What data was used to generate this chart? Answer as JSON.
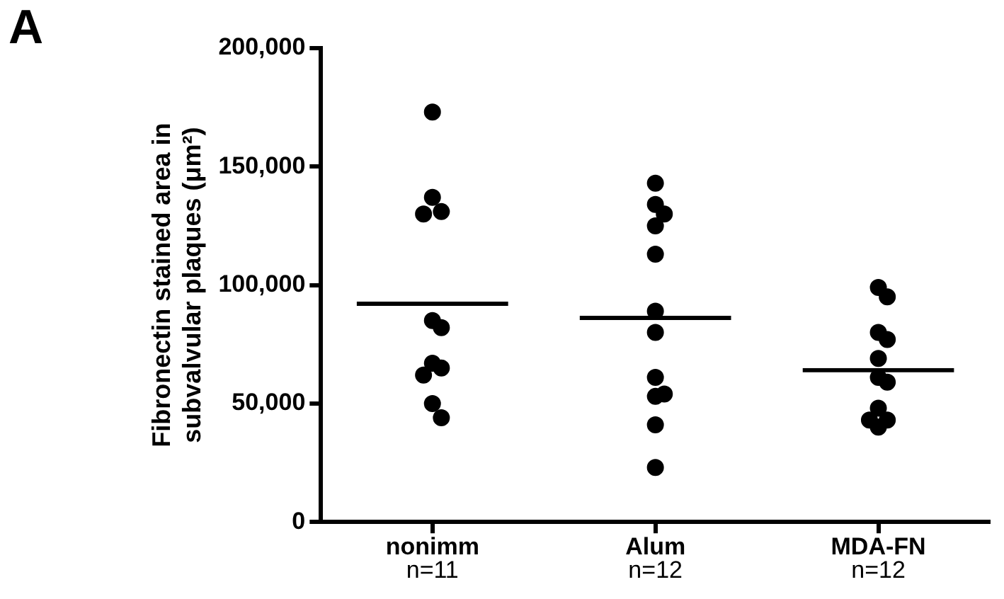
{
  "chart_data": {
    "type": "scatter",
    "ylabel": "Fibronectin stained area in subvalvular plaques (μm²)",
    "categories": [
      "nonimm",
      "Alum",
      "MDA-FN"
    ],
    "series": [
      {
        "color": "#000000",
        "marker": "circle",
        "x": [
          "nonimm",
          "nonimm",
          "nonimm",
          "nonimm",
          "nonimm",
          "nonimm",
          "nonimm",
          "nonimm",
          "nonimm",
          "nonimm",
          "nonimm",
          "Alum",
          "Alum",
          "Alum",
          "Alum",
          "Alum",
          "Alum",
          "Alum",
          "Alum",
          "Alum",
          "Alum",
          "Alum",
          "Alum",
          "MDA-FN",
          "MDA-FN",
          "MDA-FN",
          "MDA-FN",
          "MDA-FN",
          "MDA-FN",
          "MDA-FN",
          "MDA-FN",
          "MDA-FN",
          "MDA-FN",
          "MDA-FN"
        ],
        "values": [
          173000,
          137000,
          131000,
          130000,
          85000,
          82000,
          67000,
          65000,
          62000,
          50000,
          44000,
          143000,
          134000,
          130000,
          125000,
          113000,
          89000,
          80000,
          61000,
          54000,
          53000,
          41000,
          23000,
          99000,
          95000,
          80000,
          77000,
          69000,
          61000,
          59000,
          48000,
          43000,
          43000,
          40000
        ]
      },
      {
        "type": "bar",
        "color": "#000000",
        "values": [
          93000,
          87000,
          65000
        ]
      }
    ],
    "ylim": [
      0,
      200000
    ],
    "yticks": [
      {
        "value": 0,
        "label": "0"
      },
      {
        "value": 50000,
        "label": "50,000"
      },
      {
        "value": 100000,
        "label": "100,000"
      },
      {
        "value": 150000,
        "label": "150,000"
      },
      {
        "value": 200000,
        "label": "200,000"
      }
    ],
    "grid": false,
    "legend": false,
    "annotations": [
      "A",
      "n=11",
      "n=12",
      "n=12"
    ]
  }
}
